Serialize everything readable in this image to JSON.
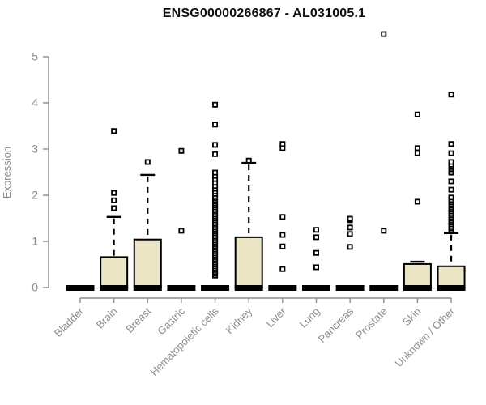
{
  "header": {
    "title": "ENSG00000266867 - AL031005.1"
  },
  "chart_data": {
    "type": "boxplot",
    "title": "ENSG00000266867 - AL031005.1",
    "xlabel": "",
    "ylabel": "Expression",
    "ylim": [
      0,
      5
    ],
    "yticks": [
      0,
      1,
      2,
      3,
      4,
      5
    ],
    "grid": false,
    "legend": "none",
    "categories": [
      "Bladder",
      "Brain",
      "Breast",
      "Gastric",
      "Hematopoietic cells",
      "Kidney",
      "Liver",
      "Lung",
      "Pancreas",
      "Prostate",
      "Skin",
      "Unknown / Other"
    ],
    "series": [
      {
        "category": "Bladder",
        "q1": 0,
        "median": 0,
        "q3": 0,
        "whisker_low": 0,
        "whisker_high": 0,
        "outliers": []
      },
      {
        "category": "Brain",
        "q1": 0,
        "median": 0,
        "q3": 0.66,
        "whisker_low": 0,
        "whisker_high": 1.53,
        "outliers": [
          1.72,
          1.89,
          2.05,
          3.39
        ]
      },
      {
        "category": "Breast",
        "q1": 0,
        "median": 0,
        "q3": 1.04,
        "whisker_low": 0,
        "whisker_high": 2.44,
        "outliers": [
          2.72
        ]
      },
      {
        "category": "Gastric",
        "q1": 0,
        "median": 0,
        "q3": 0,
        "whisker_low": 0,
        "whisker_high": 0,
        "outliers": [
          1.23,
          2.96
        ]
      },
      {
        "category": "Hematopoietic cells",
        "q1": 0,
        "median": 0,
        "q3": 0,
        "whisker_low": 0,
        "whisker_high": 0,
        "outliers": [
          0.26,
          0.3,
          0.34,
          0.38,
          0.42,
          0.46,
          0.5,
          0.54,
          0.58,
          0.62,
          0.66,
          0.7,
          0.74,
          0.78,
          0.82,
          0.86,
          0.9,
          0.94,
          0.98,
          1.02,
          1.06,
          1.1,
          1.14,
          1.18,
          1.22,
          1.26,
          1.3,
          1.34,
          1.38,
          1.42,
          1.46,
          1.5,
          1.54,
          1.58,
          1.62,
          1.66,
          1.7,
          1.74,
          1.78,
          1.82,
          1.86,
          1.9,
          1.94,
          1.98,
          2.03,
          2.08,
          2.14,
          2.2,
          2.27,
          2.35,
          2.42,
          2.49,
          2.89,
          3.09,
          3.53,
          3.96
        ]
      },
      {
        "category": "Kidney",
        "q1": 0,
        "median": 0,
        "q3": 1.09,
        "whisker_low": 0,
        "whisker_high": 2.7,
        "outliers": [
          2.75
        ]
      },
      {
        "category": "Liver",
        "q1": 0,
        "median": 0,
        "q3": 0,
        "whisker_low": 0,
        "whisker_high": 0,
        "outliers": [
          0.4,
          0.89,
          1.14,
          1.53,
          3.02,
          3.11
        ]
      },
      {
        "category": "Lung",
        "q1": 0,
        "median": 0,
        "q3": 0,
        "whisker_low": 0,
        "whisker_high": 0,
        "outliers": [
          0.44,
          0.75,
          1.09,
          1.25
        ]
      },
      {
        "category": "Pancreas",
        "q1": 0,
        "median": 0,
        "q3": 0,
        "whisker_low": 0,
        "whisker_high": 0,
        "outliers": [
          0.88,
          1.16,
          1.3,
          1.46,
          1.49
        ]
      },
      {
        "category": "Prostate",
        "q1": 0,
        "median": 0,
        "q3": 0,
        "whisker_low": 0,
        "whisker_high": 0,
        "outliers": [
          1.23,
          5.49
        ]
      },
      {
        "category": "Skin",
        "q1": 0,
        "median": 0,
        "q3": 0.51,
        "whisker_low": 0,
        "whisker_high": 0.56,
        "outliers": [
          1.86,
          2.91,
          3.02,
          3.75
        ]
      },
      {
        "category": "Unknown / Other",
        "q1": 0,
        "median": 0,
        "q3": 0.46,
        "whisker_low": 0,
        "whisker_high": 1.18,
        "outliers": [
          1.25,
          1.29,
          1.33,
          1.37,
          1.41,
          1.45,
          1.49,
          1.53,
          1.57,
          1.61,
          1.65,
          1.69,
          1.73,
          1.77,
          1.81,
          1.85,
          1.9,
          1.95,
          2.12,
          2.3,
          2.49,
          2.53,
          2.57,
          2.61,
          2.66,
          2.72,
          2.91,
          3.11,
          4.18
        ]
      }
    ],
    "colors": {
      "box_fill": "#ece5c6",
      "box_border": "#000000",
      "whisker": "#000000",
      "outlier_stroke": "#000000",
      "axis": "#8c8c8c",
      "title": "#0f0f0f",
      "background": "#ffffff"
    }
  }
}
